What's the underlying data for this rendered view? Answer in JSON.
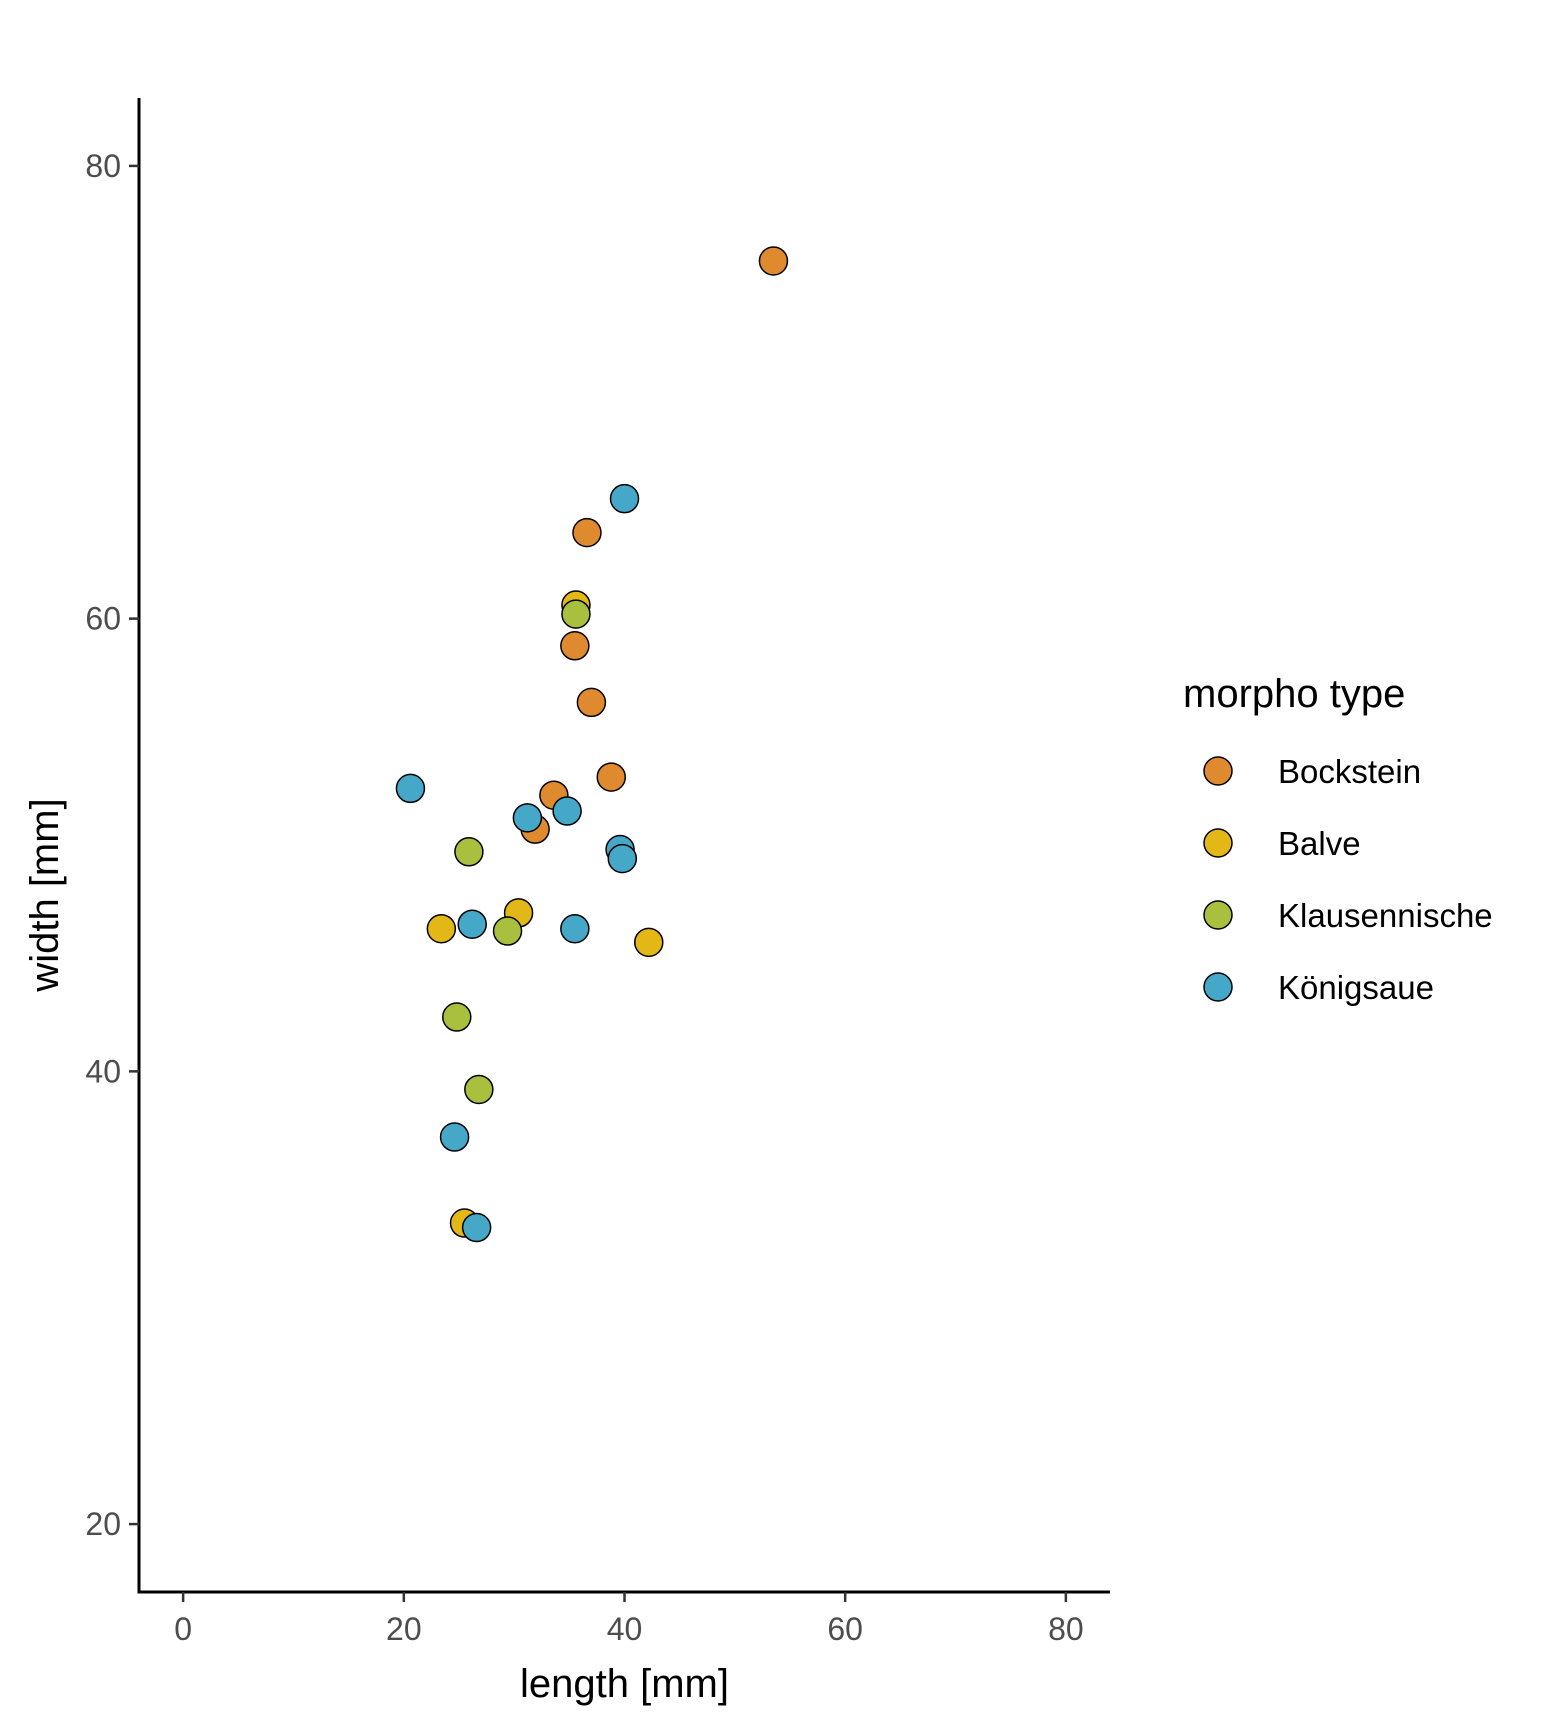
{
  "chart_data": {
    "type": "scatter",
    "title": "",
    "xlabel": "length [mm]",
    "ylabel": "width [mm]",
    "xlim": [
      -4,
      84
    ],
    "ylim": [
      17,
      83
    ],
    "x_ticks": [
      0,
      20,
      40,
      60,
      80
    ],
    "y_ticks": [
      20,
      40,
      60,
      80
    ],
    "x_tick_labels": [
      "0",
      "20",
      "40",
      "60",
      "80"
    ],
    "y_tick_labels": [
      "20",
      "40",
      "60",
      "80"
    ],
    "grid": false,
    "legend": {
      "title": "morpho type",
      "position": "right"
    },
    "series": [
      {
        "name": "Bockstein",
        "color": "#e08a2f",
        "points": [
          {
            "x": 53.5,
            "y": 75.8
          },
          {
            "x": 36.6,
            "y": 63.8
          },
          {
            "x": 35.5,
            "y": 58.8
          },
          {
            "x": 37.0,
            "y": 56.3
          },
          {
            "x": 38.8,
            "y": 53.0
          },
          {
            "x": 33.6,
            "y": 52.2
          },
          {
            "x": 31.9,
            "y": 50.7
          }
        ]
      },
      {
        "name": "Balve",
        "color": "#e3b715",
        "points": [
          {
            "x": 35.6,
            "y": 60.6
          },
          {
            "x": 30.4,
            "y": 47.0
          },
          {
            "x": 23.4,
            "y": 46.3
          },
          {
            "x": 42.2,
            "y": 45.7
          },
          {
            "x": 25.5,
            "y": 33.3
          }
        ]
      },
      {
        "name": "Klausennische",
        "color": "#a8c03e",
        "points": [
          {
            "x": 35.6,
            "y": 60.2
          },
          {
            "x": 25.9,
            "y": 49.7
          },
          {
            "x": 29.4,
            "y": 46.2
          },
          {
            "x": 24.8,
            "y": 42.4
          },
          {
            "x": 26.8,
            "y": 39.2
          }
        ]
      },
      {
        "name": "Königsaue",
        "color": "#45a8c8",
        "points": [
          {
            "x": 40.0,
            "y": 65.3
          },
          {
            "x": 20.6,
            "y": 52.5
          },
          {
            "x": 34.8,
            "y": 51.5
          },
          {
            "x": 31.2,
            "y": 51.2
          },
          {
            "x": 39.6,
            "y": 49.8
          },
          {
            "x": 39.8,
            "y": 49.4
          },
          {
            "x": 26.2,
            "y": 46.5
          },
          {
            "x": 35.5,
            "y": 46.3
          },
          {
            "x": 24.6,
            "y": 37.1
          },
          {
            "x": 26.6,
            "y": 33.1
          }
        ]
      }
    ]
  }
}
